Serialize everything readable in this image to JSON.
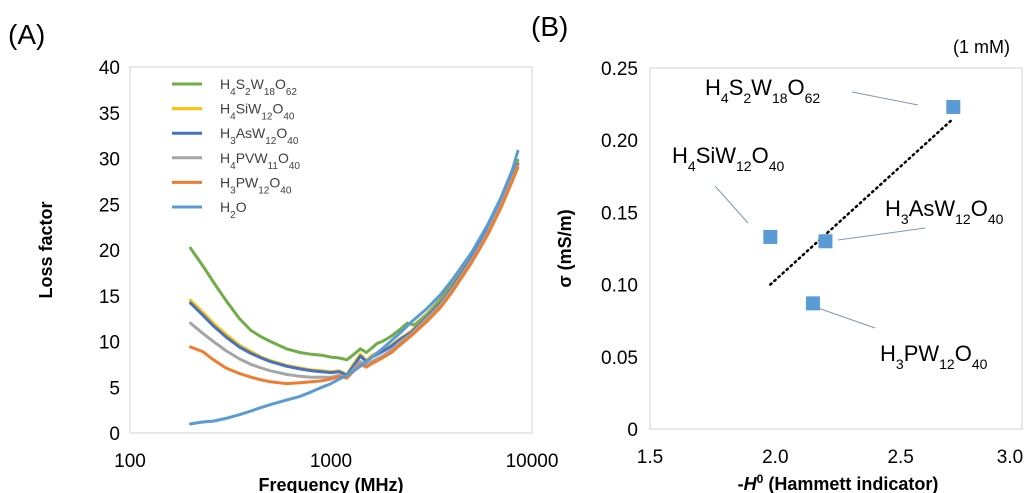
{
  "panels": {
    "a": "(A)",
    "b": "(B)"
  },
  "chart_data": [
    {
      "type": "line",
      "xscale": "log",
      "xlabel": "Frequency (MHz)",
      "ylabel": "Loss factor",
      "xlim": [
        100,
        10000
      ],
      "ylim": [
        0,
        40
      ],
      "xticks": [
        "100",
        "1000",
        "10000"
      ],
      "yticks": [
        "0",
        "5",
        "10",
        "15",
        "20",
        "25",
        "30",
        "35",
        "40"
      ],
      "legend_position": "top-left",
      "grid": false,
      "series": [
        {
          "name": "H4S2W18O62",
          "name_parts": [
            [
              "H",
              ""
            ],
            [
              "4",
              "s"
            ],
            [
              "S",
              ""
            ],
            [
              "2",
              "s"
            ],
            [
              "W",
              ""
            ],
            [
              "18",
              "s"
            ],
            [
              "O",
              ""
            ],
            [
              "62",
              "s"
            ]
          ],
          "color": "#70AD47",
          "x": [
            200,
            230,
            260,
            300,
            350,
            400,
            450,
            500,
            600,
            700,
            800,
            900,
            1000,
            1100,
            1200,
            1300,
            1400,
            1500,
            1600,
            1700,
            1800,
            2000,
            2200,
            2400,
            2600,
            3000,
            3500,
            4000,
            5000,
            6000,
            7000,
            8000,
            8500
          ],
          "y": [
            20.2,
            18.3,
            16.5,
            14.5,
            12.5,
            11.2,
            10.5,
            10.0,
            9.2,
            8.8,
            8.6,
            8.5,
            8.3,
            8.2,
            8.0,
            8.6,
            9.2,
            8.8,
            9.3,
            9.8,
            10.0,
            10.6,
            11.3,
            12.0,
            11.8,
            13.0,
            14.6,
            16.3,
            19.5,
            22.5,
            25.5,
            28.5,
            29.8
          ]
        },
        {
          "name": "H4SiW12O40",
          "name_parts": [
            [
              "H",
              ""
            ],
            [
              "4",
              "s"
            ],
            [
              "SiW",
              ""
            ],
            [
              "12",
              "s"
            ],
            [
              "O",
              ""
            ],
            [
              "40",
              "s"
            ]
          ],
          "color": "#FFC000",
          "x": [
            200,
            230,
            260,
            300,
            350,
            400,
            450,
            500,
            600,
            700,
            800,
            900,
            1000,
            1100,
            1200,
            1300,
            1400,
            1500,
            1600,
            1800,
            2000,
            2200,
            2500,
            3000,
            3500,
            4000,
            5000,
            6000,
            7000,
            8000,
            8500
          ],
          "y": [
            14.5,
            13.2,
            12.0,
            10.8,
            9.6,
            8.9,
            8.3,
            7.9,
            7.4,
            7.1,
            6.9,
            6.8,
            6.7,
            6.8,
            6.4,
            7.6,
            8.6,
            7.9,
            8.5,
            9.0,
            9.6,
            10.3,
            11.1,
            12.8,
            14.3,
            16.0,
            19.2,
            22.2,
            25.2,
            28.2,
            29.5
          ]
        },
        {
          "name": "H3AsW12O40",
          "name_parts": [
            [
              "H",
              ""
            ],
            [
              "3",
              "s"
            ],
            [
              "AsW",
              ""
            ],
            [
              "12",
              "s"
            ],
            [
              "O",
              ""
            ],
            [
              "40",
              "s"
            ]
          ],
          "color": "#4472C4",
          "x": [
            200,
            230,
            260,
            300,
            350,
            400,
            450,
            500,
            600,
            700,
            800,
            900,
            1000,
            1100,
            1200,
            1300,
            1400,
            1500,
            1600,
            1800,
            2000,
            2200,
            2500,
            3000,
            3500,
            4000,
            5000,
            6000,
            7000,
            8000,
            8500
          ],
          "y": [
            14.2,
            12.9,
            11.7,
            10.5,
            9.4,
            8.7,
            8.2,
            7.8,
            7.3,
            7.0,
            6.8,
            6.7,
            6.6,
            6.7,
            6.3,
            7.4,
            8.4,
            7.8,
            8.3,
            8.9,
            9.5,
            10.2,
            11.0,
            12.7,
            14.2,
            15.9,
            19.1,
            22.1,
            25.1,
            28.1,
            29.4
          ]
        },
        {
          "name": "H4PVW11O40",
          "name_parts": [
            [
              "H",
              ""
            ],
            [
              "4",
              "s"
            ],
            [
              "PVW",
              ""
            ],
            [
              "11",
              "s"
            ],
            [
              "O",
              ""
            ],
            [
              "40",
              "s"
            ]
          ],
          "color": "#A5A5A5",
          "x": [
            200,
            230,
            260,
            300,
            350,
            400,
            450,
            500,
            600,
            700,
            800,
            900,
            1000,
            1100,
            1200,
            1300,
            1400,
            1500,
            1600,
            1800,
            2000,
            2200,
            2500,
            3000,
            3500,
            4000,
            5000,
            6000,
            7000,
            8000,
            8500
          ],
          "y": [
            12.0,
            10.9,
            10.0,
            9.0,
            8.1,
            7.5,
            7.1,
            6.8,
            6.4,
            6.2,
            6.1,
            6.1,
            6.1,
            6.3,
            6.1,
            7.0,
            7.8,
            7.4,
            7.8,
            8.4,
            9.1,
            9.9,
            10.8,
            12.5,
            14.0,
            15.7,
            18.9,
            21.9,
            24.9,
            27.9,
            29.2
          ]
        },
        {
          "name": "H3PW12O40",
          "name_parts": [
            [
              "H",
              ""
            ],
            [
              "3",
              "s"
            ],
            [
              "PW",
              ""
            ],
            [
              "12",
              "s"
            ],
            [
              "O",
              ""
            ],
            [
              "40",
              "s"
            ]
          ],
          "color": "#ED7D31",
          "x": [
            200,
            230,
            260,
            300,
            350,
            400,
            450,
            500,
            600,
            700,
            800,
            900,
            1000,
            1100,
            1200,
            1300,
            1400,
            1500,
            1600,
            1800,
            2000,
            2200,
            2500,
            3000,
            3500,
            4000,
            5000,
            6000,
            7000,
            8000,
            8500
          ],
          "y": [
            9.4,
            8.9,
            8.0,
            7.1,
            6.5,
            6.1,
            5.8,
            5.6,
            5.4,
            5.5,
            5.6,
            5.7,
            5.9,
            6.2,
            6.0,
            6.8,
            7.5,
            7.2,
            7.6,
            8.2,
            8.8,
            9.6,
            10.6,
            12.2,
            13.7,
            15.4,
            18.6,
            21.6,
            24.6,
            27.6,
            29.0
          ]
        },
        {
          "name": "H2O",
          "name_parts": [
            [
              "H",
              ""
            ],
            [
              "2",
              "s"
            ],
            [
              "O",
              ""
            ]
          ],
          "color": "#5B9BD5",
          "x": [
            200,
            230,
            260,
            300,
            350,
            400,
            450,
            500,
            600,
            700,
            800,
            900,
            1000,
            1100,
            1200,
            1300,
            1400,
            1500,
            1600,
            1800,
            2000,
            2200,
            2500,
            3000,
            3500,
            4000,
            5000,
            6000,
            7000,
            8000,
            8500
          ],
          "y": [
            1.0,
            1.2,
            1.3,
            1.6,
            2.0,
            2.4,
            2.8,
            3.1,
            3.6,
            4.0,
            4.5,
            5.0,
            5.4,
            5.9,
            6.3,
            6.8,
            7.3,
            7.8,
            8.3,
            9.2,
            10.1,
            10.9,
            12.1,
            13.6,
            15.1,
            16.7,
            19.7,
            22.7,
            25.7,
            28.8,
            30.8
          ]
        }
      ]
    },
    {
      "type": "scatter",
      "xlabel": "-H0 (Hammett indicator)",
      "ylabel": "σ (mS/m)",
      "xlim": [
        1.5,
        3.0
      ],
      "ylim": [
        0,
        0.25
      ],
      "xticks": [
        "1.5",
        "2.0",
        "2.5",
        "3.0"
      ],
      "yticks": [
        "0",
        "0.05",
        "0.10",
        "0.15",
        "0.20",
        "0.25"
      ],
      "note": "(1 mM)",
      "grid": false,
      "marker_color": "#5B9BD5",
      "points": [
        {
          "label": "H4S2W18O62",
          "label_parts": [
            [
              "H",
              ""
            ],
            [
              "4",
              "s"
            ],
            [
              "S",
              ""
            ],
            [
              "2",
              "s"
            ],
            [
              "W",
              ""
            ],
            [
              "18",
              "s"
            ],
            [
              "O",
              ""
            ],
            [
              "62",
              "s"
            ]
          ],
          "x": 2.71,
          "y": 0.223
        },
        {
          "label": "H4SiW12O40",
          "label_parts": [
            [
              "H",
              ""
            ],
            [
              "4",
              "s"
            ],
            [
              "SiW",
              ""
            ],
            [
              "12",
              "s"
            ],
            [
              "O",
              ""
            ],
            [
              "40",
              "s"
            ]
          ],
          "x": 1.98,
          "y": 0.133
        },
        {
          "label": "H3AsW12O40",
          "label_parts": [
            [
              "H",
              ""
            ],
            [
              "3",
              "s"
            ],
            [
              "AsW",
              ""
            ],
            [
              "12",
              "s"
            ],
            [
              "O",
              ""
            ],
            [
              "40",
              "s"
            ]
          ],
          "x": 2.2,
          "y": 0.13
        },
        {
          "label": "H3PW12O40",
          "label_parts": [
            [
              "H",
              ""
            ],
            [
              "3",
              "s"
            ],
            [
              "PW",
              ""
            ],
            [
              "12",
              "s"
            ],
            [
              "O",
              ""
            ],
            [
              "40",
              "s"
            ]
          ],
          "x": 2.15,
          "y": 0.087
        }
      ],
      "trendline": {
        "style": "dotted",
        "x": [
          1.98,
          2.71
        ],
        "y": [
          0.1,
          0.215
        ]
      }
    }
  ]
}
